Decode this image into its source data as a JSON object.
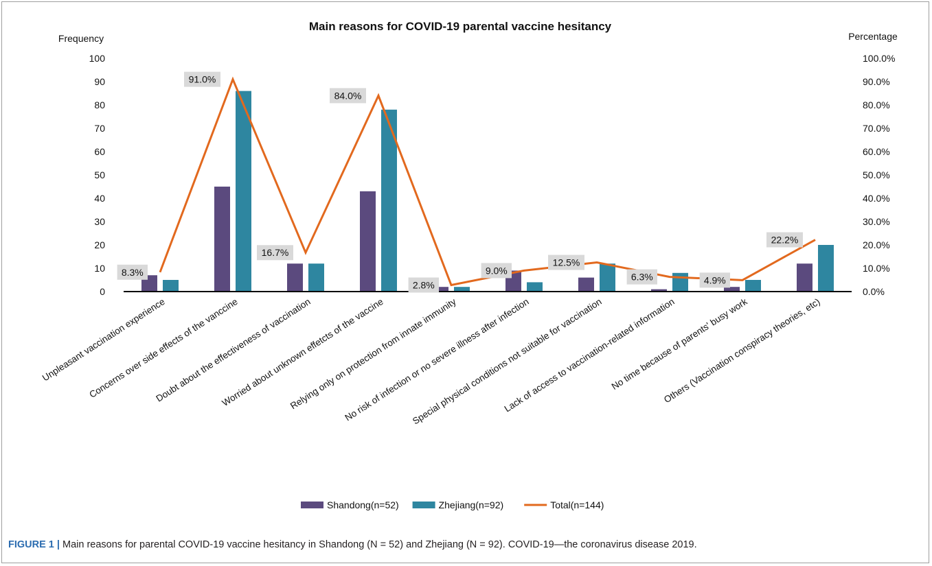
{
  "chart_data": {
    "type": "bar",
    "title": "Main reasons for COVID-19 parental vaccine hesitancy",
    "ylabel": "Frequency",
    "y2label": "Percentage",
    "ylim": [
      0,
      100
    ],
    "y2lim": [
      0,
      100
    ],
    "yticks": [
      "0",
      "10",
      "20",
      "30",
      "40",
      "50",
      "60",
      "70",
      "80",
      "90",
      "100"
    ],
    "y2ticks": [
      "0.0%",
      "10.0%",
      "20.0%",
      "30.0%",
      "40.0%",
      "50.0%",
      "60.0%",
      "70.0%",
      "80.0%",
      "90.0%",
      "100.0%"
    ],
    "categories": [
      "Unpleasant vaccination experience",
      "Concerns over side effects of the vanccine",
      "Doubt about the effectiveness of vaccination",
      "Worried about unknown effetcts of the vaccine",
      "Relying only on protection from innate immunity",
      "No risk of infection or no severe illness after infection",
      "Special physical conditions not suitable for vaccination",
      "Lack of access to vaccination-related information",
      "No time because of parents' busy work",
      "Others (Vaccination conspiracy theories, etc)"
    ],
    "series": [
      {
        "name": "Shandong(n=52)",
        "type": "bar",
        "axis": "left",
        "color": "#5b4a7e",
        "values": [
          7,
          45,
          12,
          43,
          2,
          9,
          6,
          1,
          2,
          12
        ]
      },
      {
        "name": "Zhejiang(n=92)",
        "type": "bar",
        "axis": "left",
        "color": "#2e86a0",
        "values": [
          5,
          86,
          12,
          78,
          2,
          4,
          12,
          8,
          5,
          20
        ]
      },
      {
        "name": "Total(n=144)",
        "type": "line",
        "axis": "right",
        "color": "#e2691e",
        "values": [
          8.3,
          91.0,
          16.7,
          84.0,
          2.8,
          9.0,
          12.5,
          6.3,
          4.9,
          22.2
        ]
      }
    ],
    "data_labels": [
      "8.3%",
      "91.0%",
      "16.7%",
      "84.0%",
      "2.8%",
      "9.0%",
      "12.5%",
      "6.3%",
      "4.9%",
      "22.2%"
    ],
    "legend_position": "bottom",
    "grid": false
  },
  "caption": {
    "label": "FIGURE 1 |",
    "text": "Main reasons for parental COVID-19 vaccine hesitancy in Shandong (N = 52) and Zhejiang (N = 92). COVID-19—the coronavirus disease 2019."
  }
}
